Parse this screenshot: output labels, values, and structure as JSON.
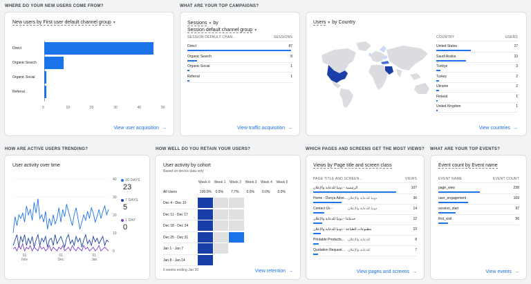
{
  "acquisition": {
    "section_title": "WHERE DO YOUR NEW USERS COME FROM?",
    "card_title": "New users by First user default channel group",
    "link": "View user acquisition",
    "chart_data": {
      "type": "bar",
      "orientation": "horizontal",
      "categories": [
        "Direct",
        "Organic Search",
        "Organic Social",
        "Referral"
      ],
      "values": [
        46,
        8,
        1,
        1
      ],
      "xlim": [
        0,
        50
      ],
      "xticks": [
        "0",
        "10",
        "20",
        "30",
        "40",
        "50"
      ]
    }
  },
  "campaigns": {
    "section_title": "WHAT ARE YOUR TOP CAMPAIGNS?",
    "title_line1": "Sessions",
    "title_by": "by",
    "title_line2": "Session default channel group",
    "col_label": "SESSION DEFAULT CHAN...",
    "col_value": "SESSIONS",
    "rows": [
      {
        "label": "Direct",
        "value": "87",
        "share": 1.0
      },
      {
        "label": "Organic Search",
        "value": "8",
        "share": 0.09
      },
      {
        "label": "Organic Social",
        "value": "1",
        "share": 0.02
      },
      {
        "label": "Referral",
        "value": "1",
        "share": 0.02
      }
    ],
    "link": "View traffic acquisition"
  },
  "country": {
    "title": "Users",
    "title_by": "by Country",
    "col_label": "COUNTRY",
    "col_value": "USERS",
    "rows": [
      {
        "label": "United States",
        "value": "27",
        "share": 1.0
      },
      {
        "label": "Saudi Arabia",
        "value": "23",
        "share": 0.85
      },
      {
        "label": "Türkiye",
        "value": "3",
        "share": 0.11
      },
      {
        "label": "Turkey",
        "value": "2",
        "share": 0.07
      },
      {
        "label": "Ukraine",
        "value": "2",
        "share": 0.07
      },
      {
        "label": "Finland",
        "value": "1",
        "share": 0.04
      },
      {
        "label": "United Kingdom",
        "value": "1",
        "share": 0.04
      }
    ],
    "link": "View countries",
    "colors": {
      "dark": "#1a3ea8",
      "light": "#c9daf8",
      "land": "#dadce0"
    }
  },
  "trend": {
    "section_title": "HOW ARE ACTIVE USERS TRENDING?",
    "card_title": "User activity over time",
    "legend": [
      {
        "label": "30 DAYS",
        "value": "23",
        "color": "#1a73e8"
      },
      {
        "label": "7 DAYS",
        "value": "5",
        "color": "#1a3ea8"
      },
      {
        "label": "1 DAY",
        "value": "0",
        "color": "#7b3fc4"
      }
    ],
    "chart_data": {
      "type": "line",
      "ylim": [
        0,
        40
      ],
      "yticks": [
        "0",
        "10",
        "20",
        "30",
        "40"
      ],
      "xticks": [
        {
          "label": "01",
          "sub": "Nov",
          "pos": 0.12
        },
        {
          "label": "01",
          "sub": "Dec",
          "pos": 0.5
        },
        {
          "label": "01",
          "sub": "Jan",
          "pos": 0.85
        }
      ],
      "series": [
        {
          "name": "30 DAYS",
          "values": [
            10,
            19,
            14,
            20,
            18,
            21,
            16,
            25,
            20,
            23,
            17,
            27,
            21,
            29,
            18,
            20,
            16,
            22,
            12,
            18,
            14,
            20,
            15,
            18,
            24,
            16,
            23,
            19,
            26,
            22,
            18,
            14,
            20,
            24,
            18,
            12,
            16,
            20,
            17,
            22,
            18,
            24,
            21,
            16,
            19,
            23,
            18,
            22,
            25,
            20,
            23
          ]
        },
        {
          "name": "7 DAYS",
          "values": [
            3,
            6,
            9,
            2,
            8,
            5,
            9,
            3,
            7,
            4,
            8,
            2,
            6,
            9,
            3,
            7,
            5,
            8,
            2,
            6,
            7,
            3,
            9,
            4,
            6,
            8,
            5,
            2,
            7,
            9,
            4,
            6,
            3,
            8,
            5,
            7,
            2,
            6,
            9,
            4,
            6,
            3,
            8,
            5,
            7,
            4,
            6,
            8,
            3,
            6,
            5
          ]
        },
        {
          "name": "1 DAY",
          "values": [
            1,
            2,
            0,
            3,
            1,
            4,
            0,
            2,
            1,
            3,
            0,
            2,
            1,
            0,
            3,
            1,
            2,
            0,
            1,
            3,
            0,
            2,
            1,
            0,
            2,
            1,
            3,
            0,
            1,
            2,
            0,
            3,
            1,
            0,
            2,
            1,
            0,
            3,
            1,
            2,
            0,
            1,
            2,
            0,
            1,
            3,
            0,
            1,
            2,
            1,
            0
          ]
        }
      ]
    }
  },
  "retention": {
    "section_title": "HOW WELL DO YOU RETAIN YOUR USERS?",
    "card_title": "User activity by cohort",
    "subtitle": "Based on device data only",
    "weeks": [
      "Week 0",
      "Week 1",
      "Week 2",
      "Week 3",
      "Week 4",
      "Week 5"
    ],
    "all_users": {
      "label": "All Users",
      "values": [
        "100.0%",
        "0.0%",
        "7.7%",
        "0.0%",
        "0.0%",
        "0.0%"
      ]
    },
    "cohorts": [
      {
        "label": "Dec 4 - Dec 10",
        "cells": [
          "full",
          "empty",
          "empty"
        ]
      },
      {
        "label": "Dec 11 - Dec 17",
        "cells": [
          "full",
          "empty",
          "empty"
        ]
      },
      {
        "label": "Dec 18 - Dec 24",
        "cells": [
          "full",
          "empty",
          "empty"
        ]
      },
      {
        "label": "Dec 25 - Dec 31",
        "cells": [
          "full",
          "empty",
          "full"
        ]
      },
      {
        "label": "Jan 1 - Jan 7",
        "cells": [
          "full",
          "empty"
        ]
      },
      {
        "label": "Jan 8 - Jan 14",
        "cells": [
          "full"
        ]
      }
    ],
    "footer": "6 weeks ending Jan 20",
    "link": "View retention"
  },
  "pages": {
    "section_title": "WHICH PAGES AND SCREENS GET THE MOST VIEWS?",
    "card_title": "Views by Page title and screen class",
    "col_label": "PAGE TITLE AND SCREEN...",
    "col_value": "VIEWS",
    "rows": [
      {
        "label": "الرئيسية - دونيا للدعاية والإعلان",
        "value": "107",
        "share": 1.0,
        "rtl": true
      },
      {
        "label": "Home - Donya Adve...",
        "value": "36",
        "share": 0.34,
        "suffix": "دونيا للدعاية والإعلان"
      },
      {
        "label": "Contact Us -",
        "value": "14",
        "share": 0.13,
        "suffix": "دونيا للدعاية والإعلان"
      },
      {
        "label": "خدماتنا - دونيا للدعاية والإعلان",
        "value": "12",
        "share": 0.11,
        "rtl": true
      },
      {
        "label": "مطبوعات الطباعة - دونيا للدعاية والإعلان",
        "value": "10",
        "share": 0.09,
        "rtl": true
      },
      {
        "label": "Printable Products...",
        "value": "8",
        "share": 0.07,
        "suffix": "للدعاية والإعلان"
      },
      {
        "label": "Quotation Request...",
        "value": "7",
        "share": 0.06,
        "suffix": "للدعاية والإعلان"
      }
    ],
    "link": "View pages and screens"
  },
  "events": {
    "section_title": "WHAT ARE YOUR TOP EVENTS?",
    "card_title": "Event count by Event name",
    "col_label": "EVENT NAME",
    "col_value": "EVENT COUNT",
    "rows": [
      {
        "label": "page_view",
        "value": "238",
        "share": 1.0
      },
      {
        "label": "user_engagement",
        "value": "169",
        "share": 0.71
      },
      {
        "label": "session_start",
        "value": "97",
        "share": 0.41
      },
      {
        "label": "first_visit",
        "value": "56",
        "share": 0.24
      }
    ],
    "link": "View events"
  }
}
